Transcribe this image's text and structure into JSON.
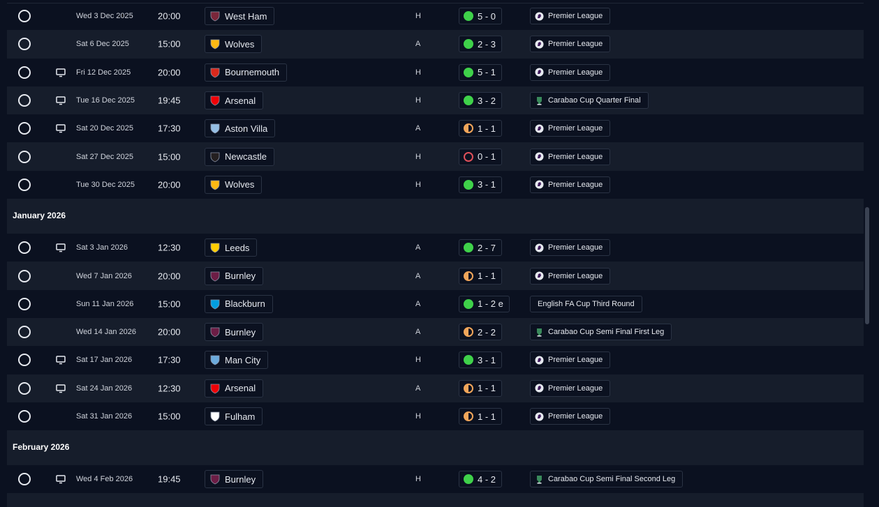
{
  "months": {
    "jan": "January 2026",
    "feb": "February 2026"
  },
  "fixtures": [
    {
      "date": "Wed 3 Dec 2025",
      "time": "20:00",
      "team": "West Ham",
      "venue": "H",
      "result": "5 - 0",
      "outcome": "win",
      "competition": "Premier League",
      "comp_icon": "premier-league-icon",
      "tv": false
    },
    {
      "date": "Sat 6 Dec 2025",
      "time": "15:00",
      "team": "Wolves",
      "venue": "A",
      "result": "2 - 3",
      "outcome": "win",
      "competition": "Premier League",
      "comp_icon": "premier-league-icon",
      "tv": false
    },
    {
      "date": "Fri 12 Dec 2025",
      "time": "20:00",
      "team": "Bournemouth",
      "venue": "H",
      "result": "5 - 1",
      "outcome": "win",
      "competition": "Premier League",
      "comp_icon": "premier-league-icon",
      "tv": true
    },
    {
      "date": "Tue 16 Dec 2025",
      "time": "19:45",
      "team": "Arsenal",
      "venue": "H",
      "result": "3 - 2",
      "outcome": "win",
      "competition": "Carabao Cup Quarter Final",
      "comp_icon": "carabao-cup-icon",
      "tv": true
    },
    {
      "date": "Sat 20 Dec 2025",
      "time": "17:30",
      "team": "Aston Villa",
      "venue": "A",
      "result": "1 - 1",
      "outcome": "draw",
      "competition": "Premier League",
      "comp_icon": "premier-league-icon",
      "tv": true
    },
    {
      "date": "Sat 27 Dec 2025",
      "time": "15:00",
      "team": "Newcastle",
      "venue": "H",
      "result": "0 - 1",
      "outcome": "loss",
      "competition": "Premier League",
      "comp_icon": "premier-league-icon",
      "tv": false
    },
    {
      "date": "Tue 30 Dec 2025",
      "time": "20:00",
      "team": "Wolves",
      "venue": "H",
      "result": "3 - 1",
      "outcome": "win",
      "competition": "Premier League",
      "comp_icon": "premier-league-icon",
      "tv": false
    },
    {
      "date": "Sat 3 Jan 2026",
      "time": "12:30",
      "team": "Leeds",
      "venue": "A",
      "result": "2 - 7",
      "outcome": "win",
      "competition": "Premier League",
      "comp_icon": "premier-league-icon",
      "tv": true
    },
    {
      "date": "Wed 7 Jan 2026",
      "time": "20:00",
      "team": "Burnley",
      "venue": "A",
      "result": "1 - 1",
      "outcome": "draw",
      "competition": "Premier League",
      "comp_icon": "premier-league-icon",
      "tv": false
    },
    {
      "date": "Sun 11 Jan 2026",
      "time": "15:00",
      "team": "Blackburn",
      "venue": "A",
      "result": "1 - 2 e",
      "outcome": "win",
      "competition": "English FA Cup Third Round",
      "comp_icon": "",
      "tv": false
    },
    {
      "date": "Wed 14 Jan 2026",
      "time": "20:00",
      "team": "Burnley",
      "venue": "A",
      "result": "2 - 2",
      "outcome": "draw",
      "competition": "Carabao Cup Semi Final First Leg",
      "comp_icon": "carabao-cup-icon",
      "tv": false
    },
    {
      "date": "Sat 17 Jan 2026",
      "time": "17:30",
      "team": "Man City",
      "venue": "H",
      "result": "3 - 1",
      "outcome": "win",
      "competition": "Premier League",
      "comp_icon": "premier-league-icon",
      "tv": true
    },
    {
      "date": "Sat 24 Jan 2026",
      "time": "12:30",
      "team": "Arsenal",
      "venue": "A",
      "result": "1 - 1",
      "outcome": "draw",
      "competition": "Premier League",
      "comp_icon": "premier-league-icon",
      "tv": true
    },
    {
      "date": "Sat 31 Jan 2026",
      "time": "15:00",
      "team": "Fulham",
      "venue": "H",
      "result": "1 - 1",
      "outcome": "draw",
      "competition": "Premier League",
      "comp_icon": "premier-league-icon",
      "tv": false
    },
    {
      "date": "Wed 4 Feb 2026",
      "time": "19:45",
      "team": "Burnley",
      "venue": "H",
      "result": "4 - 2",
      "outcome": "win",
      "competition": "Carabao Cup Semi Final Second Leg",
      "comp_icon": "carabao-cup-icon",
      "tv": true
    }
  ],
  "colors": {
    "win": "#3fd14a",
    "draw": "#f2a65a",
    "loss": "#e0505a",
    "background": "#0b1120",
    "alt_row": "#161d2b"
  },
  "crests": {
    "West Ham": "#7a263a",
    "Wolves": "#fdb913",
    "Bournemouth": "#da291c",
    "Arsenal": "#ef0107",
    "Aston Villa": "#95bfe5",
    "Newcastle": "#241f20",
    "Leeds": "#ffcd00",
    "Burnley": "#6c1d45",
    "Blackburn": "#009ee0",
    "Man City": "#6cabdd",
    "Fulham": "#ffffff"
  }
}
